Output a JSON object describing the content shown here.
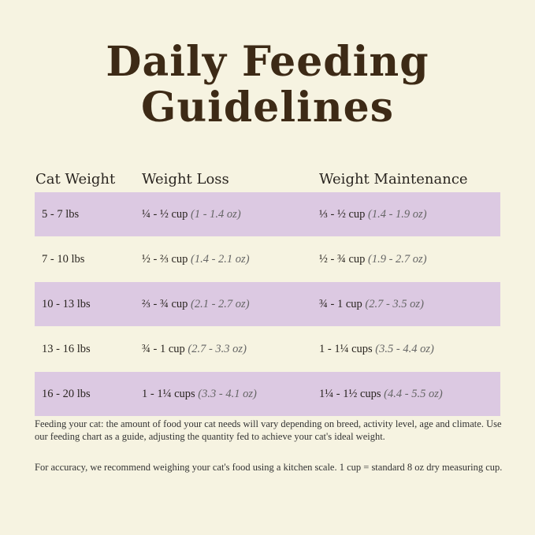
{
  "title": {
    "line1": "Daily Feeding",
    "line2": "Guidelines"
  },
  "colors": {
    "background": "#f6f3e1",
    "title": "#3d2a16",
    "row_shade": "#dcc9e2"
  },
  "table": {
    "headers": [
      "Cat Weight",
      "Weight Loss",
      "Weight Maintenance"
    ],
    "rows": [
      {
        "weight": "5 - 7 lbs",
        "loss_cups": "¼ - ½ cup",
        "loss_oz": "(1 - 1.4 oz)",
        "maint_cups": "⅓ - ½ cup",
        "maint_oz": "(1.4 - 1.9 oz)"
      },
      {
        "weight": "7 - 10 lbs",
        "loss_cups": "½ - ⅔ cup",
        "loss_oz": "(1.4 - 2.1 oz)",
        "maint_cups": "½ - ¾ cup",
        "maint_oz": "(1.9 - 2.7 oz)"
      },
      {
        "weight": "10 - 13 lbs",
        "loss_cups": "⅔ - ¾ cup",
        "loss_oz": "(2.1 - 2.7 oz)",
        "maint_cups": "¾ - 1 cup",
        "maint_oz": "(2.7 - 3.5 oz)"
      },
      {
        "weight": "13 - 16 lbs",
        "loss_cups": "¾ - 1 cup",
        "loss_oz": "(2.7 - 3.3 oz)",
        "maint_cups": "1 - 1¼ cups",
        "maint_oz": "(3.5 - 4.4 oz)"
      },
      {
        "weight": "16 - 20 lbs",
        "loss_cups": "1 - 1¼ cups",
        "loss_oz": "(3.3 - 4.1 oz)",
        "maint_cups": "1¼ - 1½ cups",
        "maint_oz": "(4.4 - 5.5 oz)"
      }
    ]
  },
  "notes": [
    "Feeding your cat: the amount of food your cat needs will vary depending on breed, activity level, age and climate. Use our feeding chart as a guide, adjusting the quantity fed to achieve your cat's ideal weight.",
    "For accuracy, we recommend weighing your cat's food using a kitchen scale. 1 cup = standard 8 oz dry measuring cup."
  ]
}
